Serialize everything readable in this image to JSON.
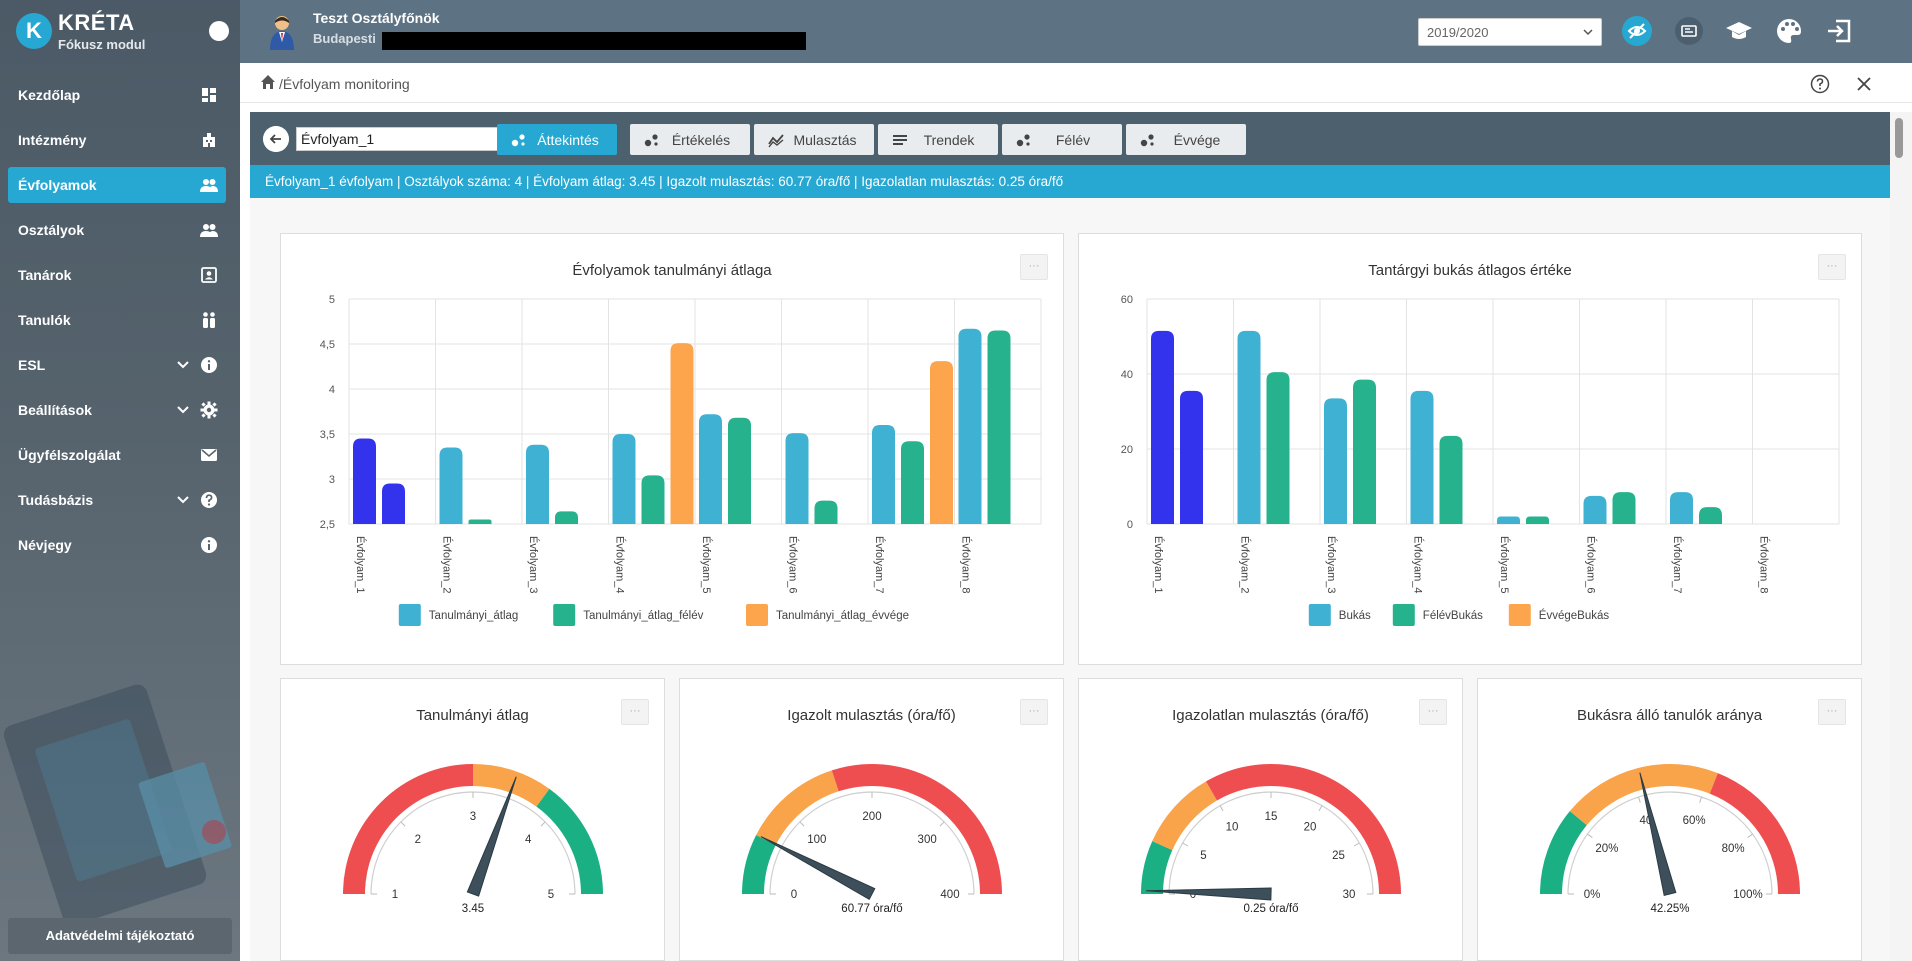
{
  "app": {
    "brand": "KRÉTA",
    "module": "Fókusz modul",
    "logo_letter": "K"
  },
  "sidebar": {
    "items": [
      {
        "label": "Kezdőlap",
        "icon": "dashboard-icon",
        "active": false,
        "expandable": false
      },
      {
        "label": "Intézmény",
        "icon": "building-icon",
        "active": false,
        "expandable": false
      },
      {
        "label": "Évfolyamok",
        "icon": "group-icon",
        "active": true,
        "expandable": false
      },
      {
        "label": "Osztályok",
        "icon": "group-icon",
        "active": false,
        "expandable": false
      },
      {
        "label": "Tanárok",
        "icon": "contact-card-icon",
        "active": false,
        "expandable": false
      },
      {
        "label": "Tanulók",
        "icon": "students-icon",
        "active": false,
        "expandable": false
      },
      {
        "label": "ESL",
        "icon": "info-icon",
        "active": false,
        "expandable": true
      },
      {
        "label": "Beállítások",
        "icon": "gear-icon",
        "active": false,
        "expandable": true
      },
      {
        "label": "Ügyfélszolgálat",
        "icon": "mail-icon",
        "active": false,
        "expandable": false
      },
      {
        "label": "Tudásbázis",
        "icon": "help-icon",
        "active": false,
        "expandable": true
      },
      {
        "label": "Névjegy",
        "icon": "info-icon",
        "active": false,
        "expandable": false
      }
    ],
    "privacy_label": "Adatvédelmi tájékoztató"
  },
  "header": {
    "user_name": "Teszt Osztályfőnök",
    "location": "Budapesti",
    "school_year": "2019/2020",
    "icons": [
      "eye-off-icon",
      "id-card-icon",
      "graduation-cap-icon",
      "palette-icon",
      "logout-icon"
    ],
    "accent": "#27a8d2"
  },
  "breadcrumb": {
    "path": "/Évfolyam monitoring"
  },
  "toolbar": {
    "selected_grade": "Évfolyam_1",
    "tabs": [
      {
        "label": "Áttekintés",
        "active": true,
        "icon": "dots-icon"
      },
      {
        "label": "Értékelés",
        "active": false,
        "icon": "dots-icon"
      },
      {
        "label": "Mulasztás",
        "active": false,
        "icon": "trend-icon"
      },
      {
        "label": "Trendek",
        "active": false,
        "icon": "lines-icon"
      },
      {
        "label": "Félév",
        "active": false,
        "icon": "dots-icon"
      },
      {
        "label": "Évvége",
        "active": false,
        "icon": "dots-icon"
      }
    ]
  },
  "info_bar": "Évfolyam_1 évfolyam | Osztályok száma: 4 | Évfolyam átlag: 3.45 | Igazolt mulasztás: 60.77 óra/fő | Igazolatlan mulasztás: 0.25 óra/fő",
  "menu_glyph": "···",
  "chart_data": [
    {
      "type": "bar",
      "title": "Évfolyamok tanulmányi átlaga",
      "categories": [
        "Évfolyam_1",
        "Évfolyam_2",
        "Évfolyam_3",
        "Évfolyam_4",
        "Évfolyam_5",
        "Évfolyam_6",
        "Évfolyam_7",
        "Évfolyam_8"
      ],
      "series": [
        {
          "name": "Tanulmányi_átlag",
          "color": "#3fb1d3",
          "values": [
            3.45,
            3.35,
            3.38,
            3.5,
            3.72,
            3.51,
            3.6,
            4.67
          ]
        },
        {
          "name": "Tanulmányi_átlag_félév",
          "color": "#26b28d",
          "values": [
            2.95,
            2.55,
            2.64,
            3.04,
            3.68,
            2.76,
            3.42,
            4.65
          ]
        },
        {
          "name": "Tanulmányi_átlag_évvége",
          "color": "#fca54c",
          "values": [
            null,
            null,
            null,
            4.51,
            null,
            null,
            4.31,
            null
          ]
        }
      ],
      "highlight_color": "#3333ee",
      "yticks": [
        "2,5",
        "3",
        "3,5",
        "4",
        "4,5",
        "5"
      ],
      "ylim": [
        2.5,
        5
      ]
    },
    {
      "type": "bar",
      "title": "Tantárgyi bukás átlagos értéke",
      "categories": [
        "Évfolyam_1",
        "Évfolyam_2",
        "Évfolyam_3",
        "Évfolyam_4",
        "Évfolyam_5",
        "Évfolyam_6",
        "Évfolyam_7",
        "Évfolyam_8"
      ],
      "series": [
        {
          "name": "Bukás",
          "color": "#3fb1d3",
          "values": [
            51.5,
            51.5,
            33.5,
            35.5,
            2,
            7.5,
            8.5,
            0
          ]
        },
        {
          "name": "FélévBukás",
          "color": "#26b28d",
          "values": [
            35.5,
            40.5,
            38.5,
            23.5,
            2,
            8.5,
            4.5,
            0
          ]
        },
        {
          "name": "ÉvvégeBukás",
          "color": "#fca54c",
          "values": [
            null,
            null,
            null,
            null,
            null,
            null,
            null,
            null
          ]
        }
      ],
      "highlight_color": "#3333ee",
      "yticks": [
        "0",
        "20",
        "40",
        "60"
      ],
      "ylim": [
        0,
        60
      ]
    },
    {
      "type": "gauge",
      "title": "Tanulmányi átlag",
      "min": 1,
      "max": 5,
      "ticks": [
        "1",
        "2",
        "3",
        "4",
        "5"
      ],
      "bands": [
        {
          "from": 1,
          "to": 3,
          "color": "#ee4e50"
        },
        {
          "from": 3,
          "to": 3.8,
          "color": "#f9a34a"
        },
        {
          "from": 3.8,
          "to": 5,
          "color": "#1ab083"
        }
      ],
      "value": 3.45,
      "value_label": "3.45"
    },
    {
      "type": "gauge",
      "title": "Igazolt mulasztás (óra/fő)",
      "min": 0,
      "max": 400,
      "ticks": [
        "0",
        "100",
        "200",
        "300",
        "400"
      ],
      "bands": [
        {
          "from": 0,
          "to": 60,
          "color": "#1ab083"
        },
        {
          "from": 60,
          "to": 160,
          "color": "#f9a34a"
        },
        {
          "from": 160,
          "to": 400,
          "color": "#ee4e50"
        }
      ],
      "value": 60.77,
      "value_label": "60.77 óra/fő"
    },
    {
      "type": "gauge",
      "title": "Igazolatlan mulasztás (óra/fő)",
      "min": 0,
      "max": 30,
      "ticks": [
        "0",
        "5",
        "10",
        "15",
        "20",
        "25",
        "30"
      ],
      "bands": [
        {
          "from": 0,
          "to": 4,
          "color": "#1ab083"
        },
        {
          "from": 4,
          "to": 10,
          "color": "#f9a34a"
        },
        {
          "from": 10,
          "to": 30,
          "color": "#ee4e50"
        }
      ],
      "value": 0.25,
      "value_label": "0.25 óra/fő"
    },
    {
      "type": "gauge",
      "title": "Bukásra álló tanulók aránya",
      "min": 0,
      "max": 100,
      "ticks": [
        "0%",
        "20%",
        "40",
        "60%",
        "80%",
        "100%"
      ],
      "bands": [
        {
          "from": 0,
          "to": 22,
          "color": "#1ab083"
        },
        {
          "from": 22,
          "to": 62,
          "color": "#f9a34a"
        },
        {
          "from": 62,
          "to": 100,
          "color": "#ee4e50"
        }
      ],
      "value": 42.25,
      "value_label": "42.25%"
    }
  ]
}
